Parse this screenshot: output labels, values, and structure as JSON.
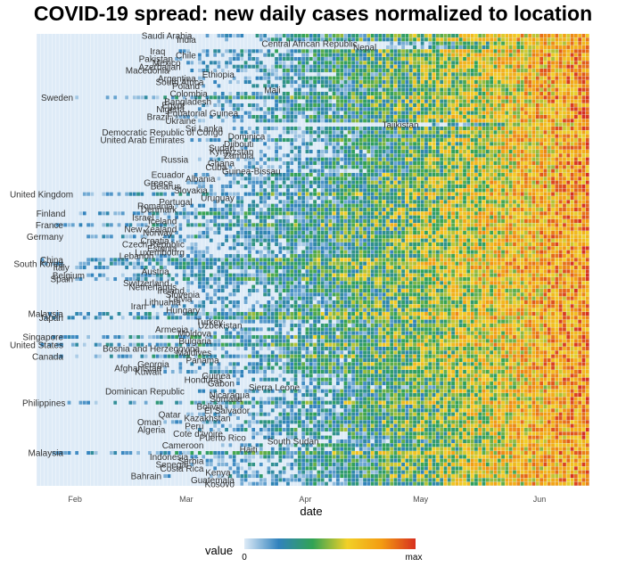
{
  "title": "COVID-19 spread: new daily cases normalized to location",
  "chart_data": {
    "type": "heatmap",
    "xlabel": "date",
    "x_ticks": [
      "Feb",
      "Mar",
      "Apr",
      "May",
      "Jun"
    ],
    "x_range": [
      "2020-01-22",
      "2020-06-13"
    ],
    "legend": {
      "title": "value",
      "min_label": "0",
      "max_label": "max",
      "placement": "bottom",
      "colors": [
        "#deebf7",
        "#3182bd",
        "#31a354",
        "#f2d027",
        "#f39c12",
        "#d7301f"
      ]
    },
    "background_color": "#deebf7",
    "rows": [
      {
        "name": "Saudi Arabia",
        "onset": "2020-03-03",
        "label": true
      },
      {
        "name": "India",
        "onset": "2020-03-04",
        "label": true
      },
      {
        "name": "Central African Republic",
        "onset": "2020-04-15",
        "label": true
      },
      {
        "name": "Nepal",
        "onset": "2020-04-20",
        "label": true
      },
      {
        "name": "Iraq",
        "onset": "2020-02-25",
        "label": true
      },
      {
        "name": "Chile",
        "onset": "2020-03-04",
        "label": true
      },
      {
        "name": "Pakistan",
        "onset": "2020-02-27",
        "label": true
      },
      {
        "name": "Mexico",
        "onset": "2020-02-29",
        "label": true
      },
      {
        "name": "Azerbaijan",
        "onset": "2020-02-29",
        "label": true
      },
      {
        "name": "Macedonia",
        "onset": "2020-02-26",
        "label": true
      },
      {
        "name": "Ethiopia",
        "onset": "2020-03-14",
        "label": true
      },
      {
        "name": "Argentina",
        "onset": "2020-03-04",
        "label": true
      },
      {
        "name": "South Africa",
        "onset": "2020-03-06",
        "label": true
      },
      {
        "name": "Poland",
        "onset": "2020-03-05",
        "label": true
      },
      {
        "name": "Mali",
        "onset": "2020-03-26",
        "label": true
      },
      {
        "name": "Colombia",
        "onset": "2020-03-07",
        "label": true
      },
      {
        "name": "Sweden",
        "onset": "2020-02-01",
        "label": true
      },
      {
        "name": "Bangladesh",
        "onset": "2020-03-08",
        "label": true
      },
      {
        "name": "Egypt",
        "onset": "2020-03-01",
        "label": true
      },
      {
        "name": "Nigeria",
        "onset": "2020-03-01",
        "label": true
      },
      {
        "name": "Equatorial Guinea",
        "onset": "2020-03-15",
        "label": true
      },
      {
        "name": "Brazil",
        "onset": "2020-02-26",
        "label": true
      },
      {
        "name": "Ukraine",
        "onset": "2020-03-04",
        "label": true
      },
      {
        "name": "Tajikistan",
        "onset": "2020-05-01",
        "label": true
      },
      {
        "name": "Sri Lanka",
        "onset": "2020-03-11",
        "label": true
      },
      {
        "name": "Democratic Republic of Congo",
        "onset": "2020-03-11",
        "label": true
      },
      {
        "name": "Dominica",
        "onset": "2020-03-22",
        "label": true
      },
      {
        "name": "United Arab Emirates",
        "onset": "2020-03-01",
        "label": true
      },
      {
        "name": "Djibouti",
        "onset": "2020-03-19",
        "label": true
      },
      {
        "name": "Sudan",
        "onset": "2020-03-14",
        "label": true
      },
      {
        "name": "Kyrgyzstan",
        "onset": "2020-03-19",
        "label": true
      },
      {
        "name": "Zambia",
        "onset": "2020-03-19",
        "label": true
      },
      {
        "name": "Russia",
        "onset": "2020-03-02",
        "label": true
      },
      {
        "name": "Ghana",
        "onset": "2020-03-14",
        "label": true
      },
      {
        "name": "Cuba",
        "onset": "2020-03-12",
        "label": true
      },
      {
        "name": "Guinea-Bissau",
        "onset": "2020-03-26",
        "label": true
      },
      {
        "name": "Ecuador",
        "onset": "2020-03-01",
        "label": true
      },
      {
        "name": "Albania",
        "onset": "2020-03-09",
        "label": true
      },
      {
        "name": "Greece",
        "onset": "2020-02-27",
        "label": true
      },
      {
        "name": "Belarus",
        "onset": "2020-02-29",
        "label": true
      },
      {
        "name": "Slovakia",
        "onset": "2020-03-07",
        "label": true
      },
      {
        "name": "United Kingdom",
        "onset": "2020-02-01",
        "label": true
      },
      {
        "name": "Uruguay",
        "onset": "2020-03-14",
        "label": true
      },
      {
        "name": "Portugal",
        "onset": "2020-03-03",
        "label": true
      },
      {
        "name": "Romania",
        "onset": "2020-02-27",
        "label": true
      },
      {
        "name": "Denmark",
        "onset": "2020-02-28",
        "label": true
      },
      {
        "name": "Finland",
        "onset": "2020-01-30",
        "label": true
      },
      {
        "name": "Israel",
        "onset": "2020-02-22",
        "label": true
      },
      {
        "name": "Iceland",
        "onset": "2020-02-28",
        "label": true
      },
      {
        "name": "France",
        "onset": "2020-01-25",
        "label": true
      },
      {
        "name": "New Zealand",
        "onset": "2020-02-28",
        "label": true
      },
      {
        "name": "Norway",
        "onset": "2020-02-27",
        "label": true
      },
      {
        "name": "Germany",
        "onset": "2020-01-28",
        "label": true
      },
      {
        "name": "Croatia",
        "onset": "2020-02-26",
        "label": true
      },
      {
        "name": "Czech Republic",
        "onset": "2020-03-01",
        "label": true
      },
      {
        "name": "Estonia",
        "onset": "2020-02-28",
        "label": true
      },
      {
        "name": "Luxembourg",
        "onset": "2020-03-01",
        "label": true
      },
      {
        "name": "Lebanon",
        "onset": "2020-02-22",
        "label": true
      },
      {
        "name": "China",
        "onset": "2020-01-22",
        "label": true
      },
      {
        "name": "South Korea",
        "onset": "2020-01-22",
        "label": true
      },
      {
        "name": "Italy",
        "onset": "2020-01-31",
        "label": true
      },
      {
        "name": "Austria",
        "onset": "2020-02-26",
        "label": true
      },
      {
        "name": "Belgium",
        "onset": "2020-02-04",
        "label": true
      },
      {
        "name": "Spain",
        "onset": "2020-02-01",
        "label": true
      },
      {
        "name": "Switzerland",
        "onset": "2020-02-26",
        "label": true
      },
      {
        "name": "Netherlands",
        "onset": "2020-02-28",
        "label": true
      },
      {
        "name": "Ireland",
        "onset": "2020-03-01",
        "label": true
      },
      {
        "name": "Slovenia",
        "onset": "2020-03-05",
        "label": true
      },
      {
        "name": "Latvia",
        "onset": "2020-03-03",
        "label": true
      },
      {
        "name": "Lithuania",
        "onset": "2020-02-29",
        "label": true
      },
      {
        "name": "Iran",
        "onset": "2020-02-20",
        "label": true
      },
      {
        "name": "Hungary",
        "onset": "2020-03-05",
        "label": true
      },
      {
        "name": "Malaysia",
        "onset": "2020-01-25",
        "label": true
      },
      {
        "name": "Japan",
        "onset": "2020-01-22",
        "label": true
      },
      {
        "name": "Turkey",
        "onset": "2020-03-11",
        "label": true
      },
      {
        "name": "Uzbekistan",
        "onset": "2020-03-16",
        "label": true
      },
      {
        "name": "Armenia",
        "onset": "2020-03-02",
        "label": true
      },
      {
        "name": "Moldova",
        "onset": "2020-03-08",
        "label": true
      },
      {
        "name": "Singapore",
        "onset": "2020-01-23",
        "label": true
      },
      {
        "name": "Bulgaria",
        "onset": "2020-03-08",
        "label": true
      },
      {
        "name": "United States",
        "onset": "2020-01-22",
        "label": true
      },
      {
        "name": "Bosnia and Herzegovina",
        "onset": "2020-03-05",
        "label": true
      },
      {
        "name": "Maldives",
        "onset": "2020-03-08",
        "label": true
      },
      {
        "name": "Canada",
        "onset": "2020-01-26",
        "label": true
      },
      {
        "name": "Panama",
        "onset": "2020-03-10",
        "label": true
      },
      {
        "name": "Georgia",
        "onset": "2020-02-26",
        "label": true
      },
      {
        "name": "Afghanistan",
        "onset": "2020-02-24",
        "label": true
      },
      {
        "name": "Kuwait",
        "onset": "2020-02-24",
        "label": true
      },
      {
        "name": "Guinea",
        "onset": "2020-03-13",
        "label": true
      },
      {
        "name": "Honduras",
        "onset": "2020-03-11",
        "label": true
      },
      {
        "name": "Gabon",
        "onset": "2020-03-14",
        "label": true
      },
      {
        "name": "Sierra Leone",
        "onset": "2020-03-31",
        "label": true
      },
      {
        "name": "Dominican Republic",
        "onset": "2020-03-01",
        "label": true
      },
      {
        "name": "Nicaragua",
        "onset": "2020-03-18",
        "label": true
      },
      {
        "name": "Somalia",
        "onset": "2020-03-16",
        "label": true
      },
      {
        "name": "Philippines",
        "onset": "2020-01-30",
        "label": true
      },
      {
        "name": "Bolivia",
        "onset": "2020-03-11",
        "label": true
      },
      {
        "name": "El Salvador",
        "onset": "2020-03-18",
        "label": true
      },
      {
        "name": "Qatar",
        "onset": "2020-02-29",
        "label": true
      },
      {
        "name": "Kazakhstan",
        "onset": "2020-03-13",
        "label": true
      },
      {
        "name": "Oman",
        "onset": "2020-02-24",
        "label": true
      },
      {
        "name": "Peru",
        "onset": "2020-03-06",
        "label": true
      },
      {
        "name": "Algeria",
        "onset": "2020-02-25",
        "label": true
      },
      {
        "name": "Cote d'Ivoire",
        "onset": "2020-03-11",
        "label": true
      },
      {
        "name": "Puerto Rico",
        "onset": "2020-03-17",
        "label": true
      },
      {
        "name": "South Sudan",
        "onset": "2020-04-05",
        "label": true
      },
      {
        "name": "Cameroon",
        "onset": "2020-03-06",
        "label": true
      },
      {
        "name": "Haiti",
        "onset": "2020-03-20",
        "label": true
      },
      {
        "name": "Malaysia",
        "onset": "2020-01-25",
        "label": true
      },
      {
        "name": "Indonesia",
        "onset": "2020-03-02",
        "label": true
      },
      {
        "name": "Serbia",
        "onset": "2020-03-06",
        "label": true
      },
      {
        "name": "Senegal",
        "onset": "2020-03-02",
        "label": true
      },
      {
        "name": "Costa Rica",
        "onset": "2020-03-06",
        "label": true
      },
      {
        "name": "Kenya",
        "onset": "2020-03-13",
        "label": true
      },
      {
        "name": "Bahrain",
        "onset": "2020-02-24",
        "label": true
      },
      {
        "name": "Guatemala",
        "onset": "2020-03-14",
        "label": true
      },
      {
        "name": "Kosovo",
        "onset": "2020-03-14",
        "label": true
      }
    ]
  }
}
